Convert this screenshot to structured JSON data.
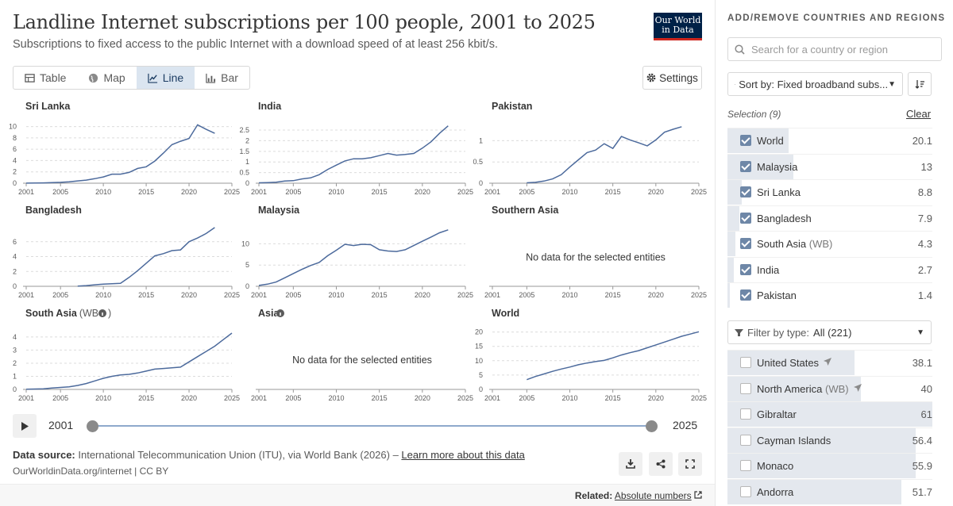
{
  "header": {
    "title": "Landline Internet subscriptions per 100 people, 2001 to 2025",
    "subtitle": "Subscriptions to fixed access to the public Internet with a download speed of at least 256 kbit/s.",
    "logo_line1": "Our World",
    "logo_line2": "in Data"
  },
  "tabs": [
    {
      "label": "Table",
      "icon": "table-icon",
      "active": false
    },
    {
      "label": "Map",
      "icon": "globe-icon",
      "active": false
    },
    {
      "label": "Line",
      "icon": "line-chart-icon",
      "active": true
    },
    {
      "label": "Bar",
      "icon": "bar-chart-icon",
      "active": false
    }
  ],
  "settings_label": "Settings",
  "no_data_text": "No data for the selected entities",
  "timeline": {
    "start": "2001",
    "end": "2025"
  },
  "footer": {
    "source_label": "Data source:",
    "source_text": "International Telecommunication Union (ITU), via World Bank (2026) – ",
    "learn_more": "Learn more about this data",
    "url_line": "OurWorldinData.org/internet | CC BY"
  },
  "related": {
    "label": "Related:",
    "link": "Absolute numbers"
  },
  "colors": {
    "line": "#4c6a9c",
    "accent": "#ce261e",
    "brand": "#002147"
  },
  "sidebar": {
    "title": "ADD/REMOVE COUNTRIES AND REGIONS",
    "search_placeholder": "Search for a country or region",
    "sort_label": "Sort by: Fixed broadband subs...",
    "selection_label": "Selection (9)",
    "clear_label": "Clear",
    "filter_label": "Filter by type:",
    "filter_value": "All (221)",
    "selected": [
      {
        "name": "World",
        "qual": "",
        "value": "20.1",
        "bar": 0.3
      },
      {
        "name": "Malaysia",
        "qual": "",
        "value": "13",
        "bar": 0.32
      },
      {
        "name": "Sri Lanka",
        "qual": "",
        "value": "8.8",
        "bar": 0.07
      },
      {
        "name": "Bangladesh",
        "qual": "",
        "value": "7.9",
        "bar": 0.06
      },
      {
        "name": "South Asia",
        "qual": "(WB)",
        "value": "4.3",
        "bar": 0.04
      },
      {
        "name": "India",
        "qual": "",
        "value": "2.7",
        "bar": 0.03
      },
      {
        "name": "Pakistan",
        "qual": "",
        "value": "1.4",
        "bar": 0.01
      }
    ],
    "unselected": [
      {
        "name": "United States",
        "qual": "",
        "value": "38.1",
        "bar": 0.62,
        "pin": true
      },
      {
        "name": "North America",
        "qual": "(WB)",
        "value": "40",
        "bar": 0.65,
        "pin": true
      },
      {
        "name": "Gibraltar",
        "qual": "",
        "value": "61",
        "bar": 1.0,
        "pin": false
      },
      {
        "name": "Cayman Islands",
        "qual": "",
        "value": "56.4",
        "bar": 0.92,
        "pin": false
      },
      {
        "name": "Monaco",
        "qual": "",
        "value": "55.9",
        "bar": 0.92,
        "pin": false
      },
      {
        "name": "Andorra",
        "qual": "",
        "value": "51.7",
        "bar": 0.85,
        "pin": false
      }
    ]
  },
  "chart_data": {
    "type": "line",
    "layout": "small-multiples",
    "x_ticks": [
      2001,
      2005,
      2010,
      2015,
      2020,
      2025
    ],
    "xlim": [
      2001,
      2025
    ],
    "grid": "horizontal dashed",
    "panels": [
      {
        "name": "Sri Lanka",
        "info": false,
        "yticks": [
          0,
          2,
          4,
          6,
          8,
          10
        ],
        "ylim": [
          0,
          10.5
        ],
        "x": [
          2001,
          2002,
          2003,
          2004,
          2005,
          2006,
          2007,
          2008,
          2009,
          2010,
          2011,
          2012,
          2013,
          2014,
          2015,
          2016,
          2017,
          2018,
          2019,
          2020,
          2021,
          2022,
          2023
        ],
        "y": [
          0.02,
          0.03,
          0.05,
          0.1,
          0.15,
          0.25,
          0.4,
          0.55,
          0.8,
          1.1,
          1.6,
          1.6,
          1.9,
          2.6,
          2.9,
          3.9,
          5.3,
          6.8,
          7.4,
          7.9,
          10.3,
          9.5,
          8.8
        ]
      },
      {
        "name": "India",
        "info": false,
        "yticks": [
          0,
          0.5,
          1,
          1.5,
          2,
          2.5
        ],
        "ylim": [
          0,
          2.8
        ],
        "x": [
          2001,
          2002,
          2003,
          2004,
          2005,
          2006,
          2007,
          2008,
          2009,
          2010,
          2011,
          2012,
          2013,
          2014,
          2015,
          2016,
          2017,
          2018,
          2019,
          2020,
          2021,
          2022,
          2023
        ],
        "y": [
          0.02,
          0.03,
          0.05,
          0.1,
          0.12,
          0.2,
          0.25,
          0.4,
          0.65,
          0.85,
          1.05,
          1.15,
          1.15,
          1.2,
          1.3,
          1.4,
          1.32,
          1.35,
          1.4,
          1.65,
          1.95,
          2.35,
          2.7
        ]
      },
      {
        "name": "Pakistan",
        "info": false,
        "yticks": [
          0,
          0.5,
          1
        ],
        "ylim": [
          0,
          1.4
        ],
        "x": [
          2005,
          2006,
          2007,
          2008,
          2009,
          2010,
          2011,
          2012,
          2013,
          2014,
          2015,
          2016,
          2017,
          2018,
          2019,
          2020,
          2021,
          2022,
          2023
        ],
        "y": [
          0.01,
          0.02,
          0.05,
          0.1,
          0.2,
          0.38,
          0.55,
          0.72,
          0.78,
          0.93,
          0.82,
          1.1,
          1.02,
          0.95,
          0.88,
          1.02,
          1.2,
          1.27,
          1.33
        ]
      },
      {
        "name": "Bangladesh",
        "info": false,
        "yticks": [
          0,
          2,
          4,
          6
        ],
        "ylim": [
          0,
          8
        ],
        "x": [
          2007,
          2008,
          2009,
          2010,
          2011,
          2012,
          2013,
          2014,
          2015,
          2016,
          2017,
          2018,
          2019,
          2020,
          2021,
          2022,
          2023
        ],
        "y": [
          0.03,
          0.1,
          0.2,
          0.3,
          0.35,
          0.4,
          1.2,
          2.1,
          3.1,
          4.1,
          4.4,
          4.8,
          4.9,
          6.0,
          6.5,
          7.1,
          7.9
        ]
      },
      {
        "name": "Malaysia",
        "info": false,
        "yticks": [
          0,
          5,
          10
        ],
        "ylim": [
          0,
          14
        ],
        "x": [
          2001,
          2002,
          2003,
          2004,
          2005,
          2006,
          2007,
          2008,
          2009,
          2010,
          2011,
          2012,
          2013,
          2014,
          2015,
          2016,
          2017,
          2018,
          2019,
          2020,
          2021,
          2022,
          2023
        ],
        "y": [
          0.2,
          0.5,
          1.0,
          2.0,
          3.0,
          4.0,
          4.9,
          5.6,
          7.2,
          8.5,
          9.9,
          9.6,
          9.9,
          9.8,
          8.6,
          8.3,
          8.2,
          8.6,
          9.6,
          10.6,
          11.6,
          12.6,
          13.3
        ]
      },
      {
        "name": "Southern Asia",
        "info": false,
        "nodata": true
      },
      {
        "name": "South Asia",
        "qual": "(WB",
        "info": true,
        "yticks": [
          0,
          1,
          2,
          3,
          4
        ],
        "ylim": [
          0,
          4.6
        ],
        "x": [
          2001,
          2002,
          2003,
          2004,
          2005,
          2006,
          2007,
          2008,
          2009,
          2010,
          2011,
          2012,
          2013,
          2014,
          2015,
          2016,
          2017,
          2018,
          2019,
          2020,
          2021,
          2022,
          2023,
          2024,
          2025
        ],
        "y": [
          0.02,
          0.03,
          0.05,
          0.1,
          0.15,
          0.2,
          0.3,
          0.45,
          0.65,
          0.85,
          1.0,
          1.1,
          1.15,
          1.25,
          1.4,
          1.55,
          1.6,
          1.65,
          1.7,
          2.1,
          2.5,
          2.9,
          3.3,
          3.8,
          4.3
        ]
      },
      {
        "name": "Asia",
        "info": true,
        "nodata": true
      },
      {
        "name": "World",
        "info": false,
        "yticks": [
          0,
          5,
          10,
          15,
          20
        ],
        "ylim": [
          0,
          21
        ],
        "x": [
          2005,
          2006,
          2007,
          2008,
          2009,
          2010,
          2011,
          2012,
          2013,
          2014,
          2015,
          2016,
          2017,
          2018,
          2019,
          2020,
          2021,
          2022,
          2023,
          2024,
          2025
        ],
        "y": [
          3.4,
          4.5,
          5.4,
          6.3,
          7.1,
          7.8,
          8.6,
          9.2,
          9.7,
          10.1,
          11.0,
          12.0,
          12.8,
          13.5,
          14.5,
          15.5,
          16.5,
          17.5,
          18.5,
          19.3,
          20.1
        ]
      }
    ]
  }
}
